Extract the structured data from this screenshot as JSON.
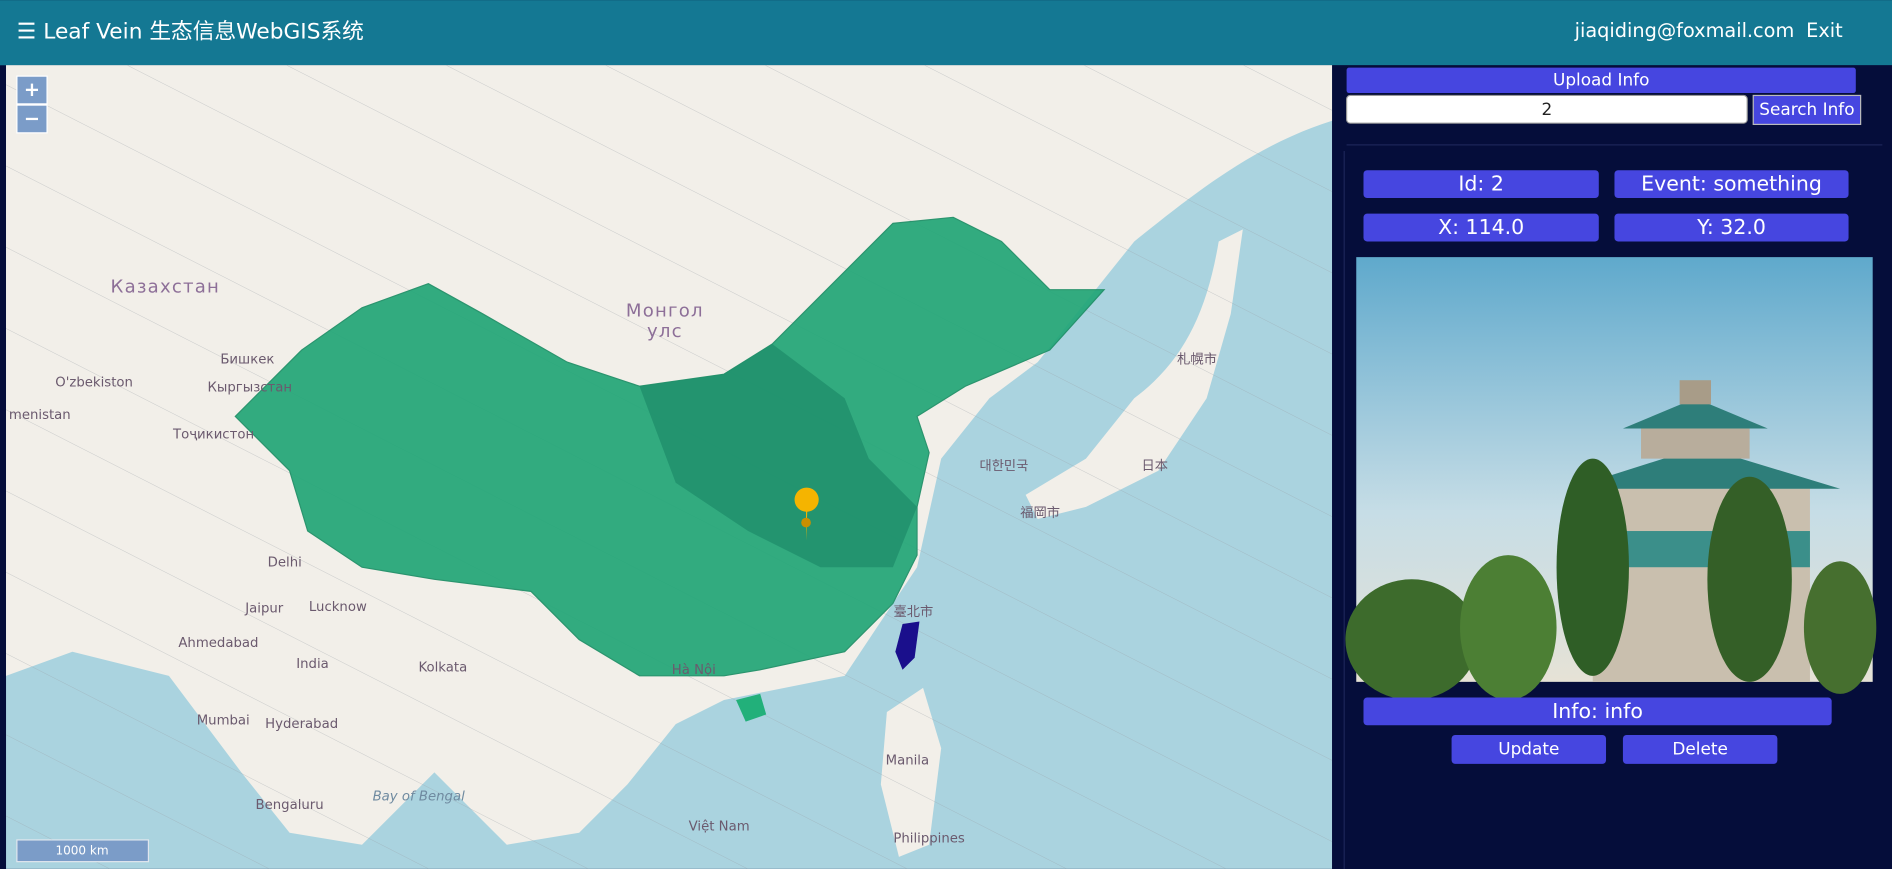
{
  "header": {
    "title": "☰ Leaf Vein 生态信息WebGIS系统",
    "user": "jiaqiding@foxmail.com",
    "exit": "Exit"
  },
  "map": {
    "zoom_in": "+",
    "zoom_out": "−",
    "scale": "1000 km",
    "labels": [
      "Казахстан",
      "Монгол",
      "улс",
      "Бишкек",
      "O'zbekiston",
      "Кыргызстан",
      "menistan",
      "Тоҷикистон",
      "Delhi",
      "India",
      "Jaipur",
      "Lucknow",
      "Ahmedabad",
      "Kolkata",
      "Mumbai",
      "Hyderabad",
      "Bengaluru",
      "Bay of Bengal",
      "Hà Nội",
      "Việt Nam",
      "Manila",
      "Philippines",
      "札幌市",
      "日本",
      "대한민국",
      "福岡市",
      "臺北市"
    ]
  },
  "panel": {
    "upload": "Upload Info",
    "search_value": "2",
    "search": "Search Info",
    "id": "Id: 2",
    "event": "Event: something",
    "x": "X: 114.0",
    "y": "Y: 32.0",
    "info": "Info: info",
    "update": "Update",
    "delete": "Delete"
  }
}
